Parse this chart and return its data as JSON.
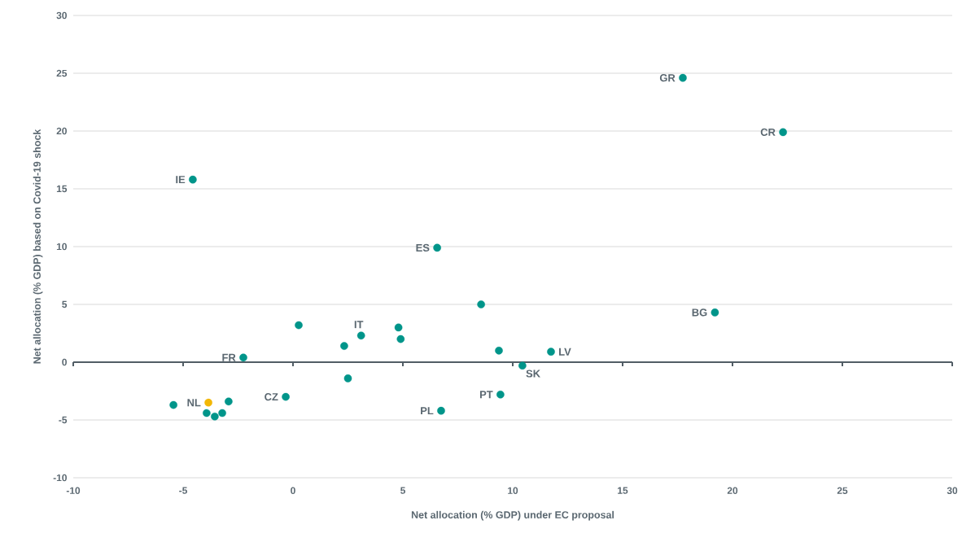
{
  "chart_data": {
    "type": "scatter",
    "xlabel": "Net allocation (% GDP) under EC proposal",
    "ylabel": "Net allocation (% GDP) based on Covid-19 shock",
    "x": [
      17.74,
      22.3,
      -4.56,
      6.56,
      8.56,
      19.2,
      0.26,
      3.1,
      4.8,
      4.9,
      2.33,
      -2.26,
      9.37,
      11.74,
      10.44,
      2.5,
      9.44,
      6.74,
      -0.33,
      -5.44,
      -3.85,
      -3.93,
      -3.56,
      -3.22,
      -2.93
    ],
    "values": [
      24.6,
      19.9,
      15.8,
      9.9,
      5.0,
      4.3,
      3.2,
      2.3,
      3.0,
      2.0,
      1.4,
      0.4,
      1.0,
      0.9,
      -0.3,
      -1.4,
      -2.8,
      -4.2,
      -3.0,
      -3.7,
      -3.5,
      -4.4,
      -4.7,
      -4.4,
      -3.4
    ],
    "colors": [
      "#00958a",
      "#00958a",
      "#00958a",
      "#00958a",
      "#00958a",
      "#00958a",
      "#00958a",
      "#00958a",
      "#00958a",
      "#00958a",
      "#00958a",
      "#00958a",
      "#00958a",
      "#00958a",
      "#00958a",
      "#00958a",
      "#00958a",
      "#00958a",
      "#00958a",
      "#00958a",
      "#f2b705",
      "#00958a",
      "#00958a",
      "#00958a",
      "#00958a"
    ],
    "marker": "circle",
    "xlim": [
      -10,
      30
    ],
    "ylim": [
      -10,
      30
    ],
    "xticks": [
      -10,
      -5,
      0,
      5,
      10,
      15,
      20,
      25,
      30
    ],
    "yticks": [
      -10,
      -5,
      0,
      5,
      10,
      15,
      20,
      25,
      30
    ],
    "grid": "y",
    "annotations": [
      {
        "text": "GR",
        "x": 17.74,
        "y": 24.6
      },
      {
        "text": "CR",
        "x": 22.3,
        "y": 19.9
      },
      {
        "text": "IE",
        "x": -4.56,
        "y": 15.8
      },
      {
        "text": "ES",
        "x": 6.56,
        "y": 9.9
      },
      {
        "text": "BG",
        "x": 19.2,
        "y": 4.3
      },
      {
        "text": "IT",
        "x": 3.1,
        "y": 2.3
      },
      {
        "text": "FR",
        "x": -2.26,
        "y": 0.4
      },
      {
        "text": "LV",
        "x": 11.74,
        "y": 0.9
      },
      {
        "text": "SK",
        "x": 10.44,
        "y": -0.3
      },
      {
        "text": "PT",
        "x": 9.44,
        "y": -2.8
      },
      {
        "text": "PL",
        "x": 6.74,
        "y": -4.2
      },
      {
        "text": "CZ",
        "x": -0.33,
        "y": -3.0
      },
      {
        "text": "NL",
        "x": -3.85,
        "y": -3.5
      }
    ]
  }
}
